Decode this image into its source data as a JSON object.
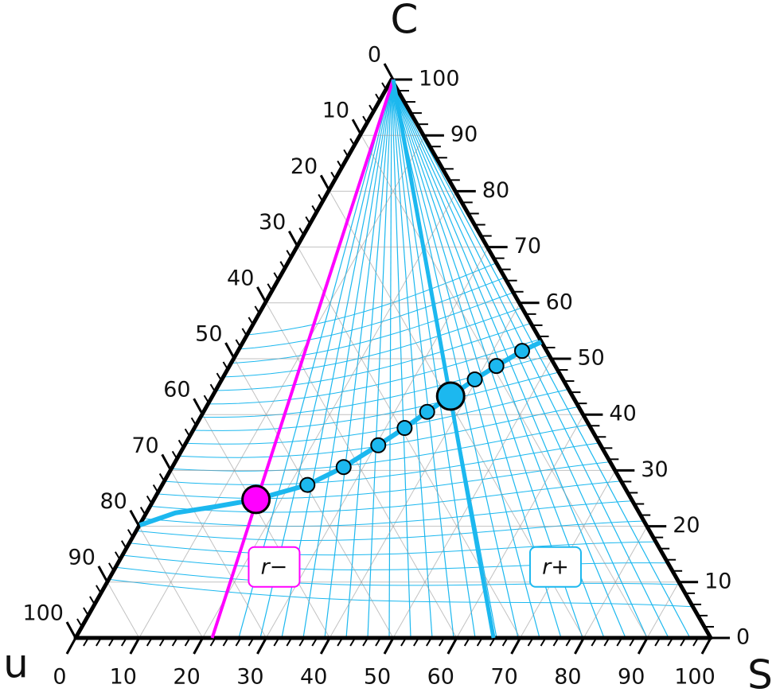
{
  "chart_data": {
    "type": "ternary",
    "vertex_labels": {
      "top": "C",
      "left": "u",
      "right": "S"
    },
    "ticks": [
      0,
      10,
      20,
      30,
      40,
      50,
      60,
      70,
      80,
      90,
      100
    ],
    "rays": [
      {
        "name": "r−",
        "color": "#ff00ff",
        "S_end": 21.5
      },
      {
        "name": "r+",
        "color": "#1cb8ef",
        "S_end": 65.8
      }
    ],
    "curve": {
      "color": "#1cb8ef",
      "S": [
        0,
        4.5,
        10.2,
        16.0,
        22.8,
        26.9,
        30.4,
        33.0,
        35.1,
        37.4,
        39.7,
        41.9,
        44.6,
        46.8
      ],
      "C": [
        20.2,
        22.4,
        23.5,
        24.8,
        27.4,
        30.6,
        34.5,
        37.6,
        40.5,
        43.3,
        46.3,
        48.7,
        51.4,
        53.0
      ]
    },
    "points": {
      "color": "#1cb8ef",
      "S": [
        22.8,
        26.9,
        30.4,
        33.0,
        35.1,
        39.7,
        41.9,
        44.6
      ],
      "C": [
        27.4,
        30.6,
        34.5,
        37.6,
        40.5,
        46.3,
        48.7,
        51.4
      ]
    },
    "markers": [
      {
        "color": "#ff00ff",
        "S": 16.0,
        "C": 24.8
      },
      {
        "color": "#1cb8ef",
        "S": 37.4,
        "C": 43.3
      }
    ]
  }
}
